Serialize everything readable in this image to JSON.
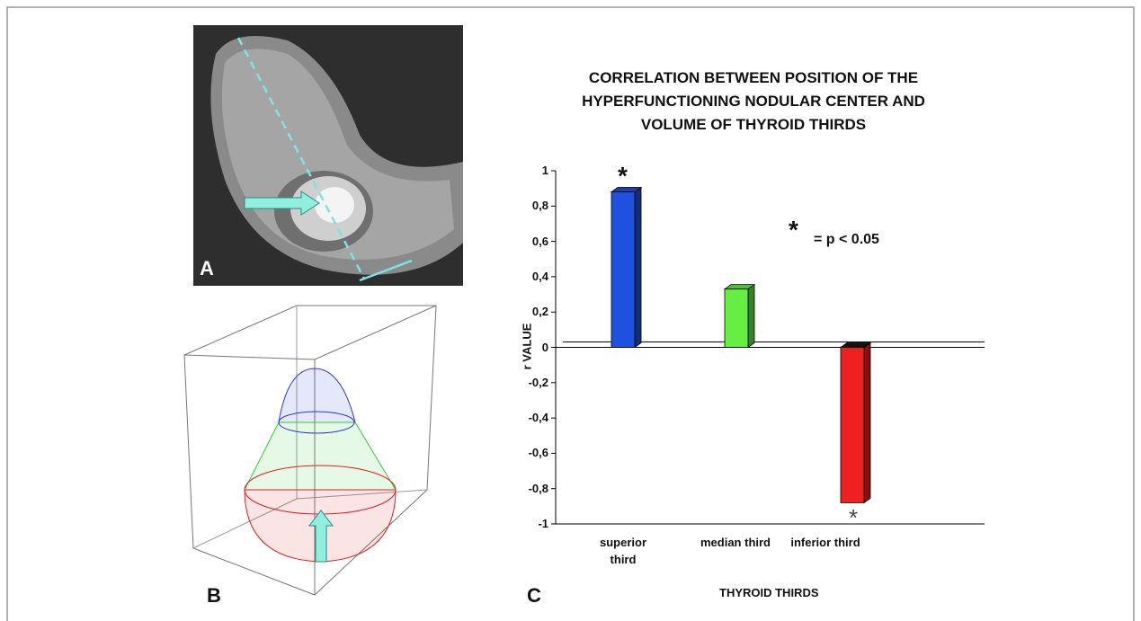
{
  "panels": {
    "a": "A",
    "b": "B",
    "c": "C"
  },
  "chart_data": {
    "type": "bar3d",
    "title": "CORRELATION BETWEEN POSITION OF THE HYPERFUNCTIONING NODULAR CENTER AND VOLUME OF THYROID THIRDS",
    "x_label": "THYROID THIRDS",
    "y_label": "r VALUE",
    "categories": [
      "superior third",
      "median third",
      "inferior third"
    ],
    "values": [
      0.88,
      0.33,
      -0.88
    ],
    "colors": [
      "#2050e0",
      "#66ee44",
      "#ee2020"
    ],
    "ylim": [
      -1,
      1
    ],
    "yticks": [
      -1,
      {
        "value": -0.8,
        "label": "-0,8"
      },
      {
        "value": -0.6,
        "label": "-0,6"
      },
      {
        "value": -0.4,
        "label": "-0,4"
      },
      {
        "value": -0.2,
        "label": "-0,2"
      },
      0,
      {
        "value": 0.2,
        "label": "0,2"
      },
      {
        "value": 0.4,
        "label": "0,4"
      },
      {
        "value": 0.6,
        "label": "0,6"
      },
      {
        "value": 0.8,
        "label": "0,8"
      },
      1
    ],
    "significance_marker": "*",
    "significance_legend": "= p < 0.05"
  }
}
